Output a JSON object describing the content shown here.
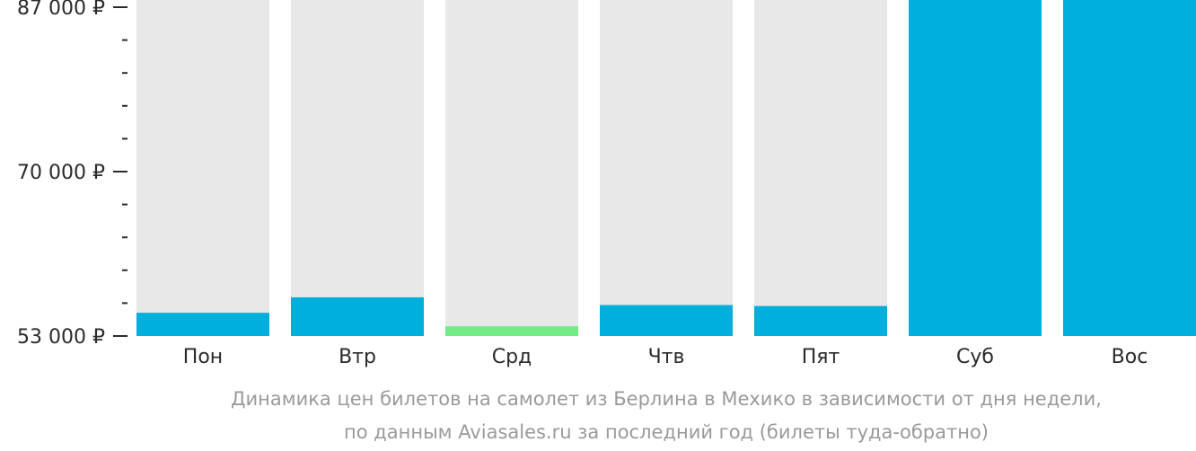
{
  "chart_data": {
    "type": "bar",
    "categories": [
      "Пон",
      "Втр",
      "Срд",
      "Чтв",
      "Пят",
      "Суб",
      "Вос"
    ],
    "values": [
      55400,
      57000,
      54000,
      56200,
      56100,
      88200,
      90000
    ],
    "bar_colors": [
      "#00afdc",
      "#00afdc",
      "#72ec86",
      "#00afdc",
      "#00afdc",
      "#00afdc",
      "#00afdc"
    ],
    "background_color": "#e8e8e8",
    "highlight_color": "#72ec86",
    "series_color": "#00afdc",
    "ylim": [
      53000,
      87000
    ],
    "y_ticks": [
      {
        "value": 87000,
        "label": "87 000 ₽"
      },
      {
        "value": 70000,
        "label": "70 000 ₽"
      },
      {
        "value": 53000,
        "label": "53 000 ₽"
      }
    ],
    "minor_tick_step": 3400,
    "title": "",
    "xlabel": "",
    "ylabel": "",
    "grid": false,
    "legend": "none"
  },
  "caption": {
    "line1": "Динамика цен билетов на самолет из Берлина в Мехико в зависимости от дня недели,",
    "line2": "по данным Aviasales.ru за последний год (билеты туда-обратно)"
  }
}
